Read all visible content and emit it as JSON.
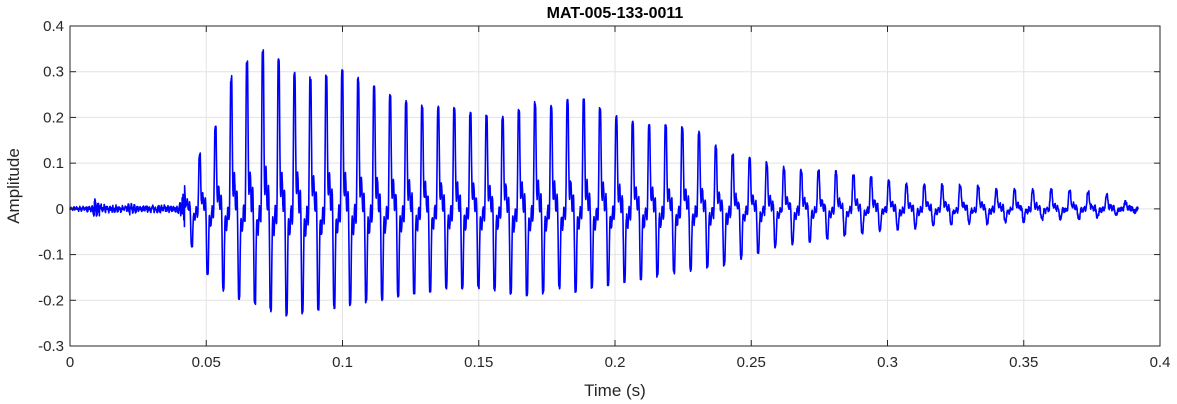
{
  "chart_data": {
    "type": "line",
    "title": "MAT-005-133-0011",
    "xlabel": "Time (s)",
    "ylabel": "Amplitude",
    "xlim": [
      0,
      0.4
    ],
    "ylim": [
      -0.3,
      0.4
    ],
    "xticks": [
      0,
      0.05,
      0.1,
      0.15,
      0.2,
      0.25,
      0.3,
      0.35,
      0.4
    ],
    "xtick_labels": [
      "0",
      "0.05",
      "0.1",
      "0.15",
      "0.2",
      "0.25",
      "0.3",
      "0.35",
      "0.4"
    ],
    "yticks": [
      -0.3,
      -0.2,
      -0.1,
      0,
      0.1,
      0.2,
      0.3,
      0.4
    ],
    "ytick_labels": [
      "-0.3",
      "-0.2",
      "-0.1",
      "0",
      "0.1",
      "0.2",
      "0.3",
      "0.4"
    ],
    "grid": true,
    "line_color": "#0000ff",
    "signal_duration_s": 0.392,
    "envelope": {
      "t": [
        0,
        0.008,
        0.009,
        0.012,
        0.02,
        0.022,
        0.025,
        0.035,
        0.04,
        0.043,
        0.05,
        0.055,
        0.06,
        0.065,
        0.07,
        0.073,
        0.08,
        0.09,
        0.1,
        0.11,
        0.12,
        0.13,
        0.14,
        0.15,
        0.16,
        0.17,
        0.18,
        0.185,
        0.19,
        0.2,
        0.21,
        0.22,
        0.23,
        0.24,
        0.25,
        0.26,
        0.27,
        0.28,
        0.29,
        0.3,
        0.31,
        0.32,
        0.33,
        0.34,
        0.35,
        0.36,
        0.37,
        0.38,
        0.392
      ],
      "max": [
        0.005,
        0.008,
        0.025,
        0.01,
        0.008,
        0.015,
        0.008,
        0.01,
        0.012,
        0.07,
        0.14,
        0.2,
        0.3,
        0.32,
        0.34,
        0.35,
        0.3,
        0.28,
        0.3,
        0.27,
        0.24,
        0.22,
        0.22,
        0.2,
        0.2,
        0.23,
        0.22,
        0.25,
        0.23,
        0.2,
        0.18,
        0.18,
        0.17,
        0.12,
        0.11,
        0.09,
        0.08,
        0.08,
        0.07,
        0.06,
        0.05,
        0.05,
        0.05,
        0.04,
        0.04,
        0.04,
        0.04,
        0.03,
        0.005
      ],
      "min": [
        -0.005,
        -0.008,
        -0.012,
        -0.01,
        -0.008,
        -0.012,
        -0.008,
        -0.01,
        -0.012,
        -0.06,
        -0.14,
        -0.17,
        -0.19,
        -0.2,
        -0.21,
        -0.22,
        -0.23,
        -0.22,
        -0.21,
        -0.2,
        -0.19,
        -0.18,
        -0.17,
        -0.17,
        -0.18,
        -0.19,
        -0.17,
        -0.18,
        -0.17,
        -0.16,
        -0.15,
        -0.14,
        -0.13,
        -0.12,
        -0.1,
        -0.08,
        -0.07,
        -0.06,
        -0.05,
        -0.045,
        -0.04,
        -0.035,
        -0.03,
        -0.03,
        -0.025,
        -0.02,
        -0.02,
        -0.015,
        -0.005
      ]
    }
  }
}
